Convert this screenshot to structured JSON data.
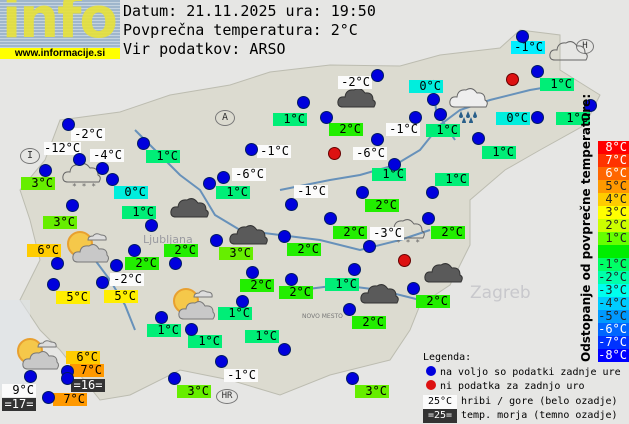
{
  "header": {
    "logo_text": "info",
    "logo_url": "www.informacije.si",
    "date_line": "Datum: 21.11.2025 ura: 19:50",
    "avg_line": "Povprečna temperatura: 2°C",
    "source_line": "Vir podatkov: ARSO"
  },
  "map_labels": [
    "A",
    "I",
    "H",
    "HR",
    "Zagreb",
    "Ljubljana",
    "NOVO MESTO"
  ],
  "stations": [
    {
      "temp": "-1°C",
      "style": "c3"
    },
    {
      "temp": "1°C",
      "style": "g1"
    },
    {
      "temp": "0°C",
      "style": "c2"
    },
    {
      "temp": "-2°C",
      "style": "w"
    },
    {
      "temp": "2°C",
      "style": "g0"
    },
    {
      "temp": "1°C",
      "style": "g1"
    },
    {
      "temp": "-1°C",
      "style": "w"
    },
    {
      "temp": "1°C",
      "style": "g1"
    },
    {
      "temp": "0°C",
      "style": "c2"
    },
    {
      "temp": "1°C",
      "style": "g1"
    },
    {
      "temp": "1°C",
      "style": "g1"
    },
    {
      "temp": "-6°C",
      "style": "w"
    },
    {
      "temp": "1°C",
      "style": "g1"
    },
    {
      "temp": "1°C",
      "style": "g1"
    },
    {
      "temp": "-1°C",
      "style": "w"
    },
    {
      "temp": "2°C",
      "style": "g0"
    },
    {
      "temp": "-2°C",
      "style": "w"
    },
    {
      "temp": "-12°C",
      "style": "w"
    },
    {
      "temp": "-4°C",
      "style": "w"
    },
    {
      "temp": "1°C",
      "style": "g1"
    },
    {
      "temp": "3°C",
      "style": "lm"
    },
    {
      "temp": "0°C",
      "style": "c2"
    },
    {
      "temp": "1°C",
      "style": "g1"
    },
    {
      "temp": "3°C",
      "style": "lm"
    },
    {
      "temp": "-1°C",
      "style": "w"
    },
    {
      "temp": "-6°C",
      "style": "w"
    },
    {
      "temp": "1°C",
      "style": "g1"
    },
    {
      "temp": "6°C",
      "style": "o4"
    },
    {
      "temp": "2°C",
      "style": "g0"
    },
    {
      "temp": "2°C",
      "style": "g0"
    },
    {
      "temp": "3°C",
      "style": "lm"
    },
    {
      "temp": "2°C",
      "style": "g0"
    },
    {
      "temp": "-2°C",
      "style": "w"
    },
    {
      "temp": "5°C",
      "style": "y"
    },
    {
      "temp": "5°C",
      "style": "y"
    },
    {
      "temp": "2°C",
      "style": "g0"
    },
    {
      "temp": "2°C",
      "style": "g0"
    },
    {
      "temp": "1°C",
      "style": "g1"
    },
    {
      "temp": "1°C",
      "style": "g1"
    },
    {
      "temp": "1°C",
      "style": "g1"
    },
    {
      "temp": "1°C",
      "style": "g1"
    },
    {
      "temp": "6°C",
      "style": "o4"
    },
    {
      "temp": "7°C",
      "style": "o5"
    },
    {
      "temp": "=16=",
      "style": "d"
    },
    {
      "temp": "9°C",
      "style": "w"
    },
    {
      "temp": "=17=",
      "style": "d"
    },
    {
      "temp": "7°C",
      "style": "o5"
    },
    {
      "temp": "3°C",
      "style": "lm"
    },
    {
      "temp": "-1°C",
      "style": "w"
    },
    {
      "temp": "2°C",
      "style": "g0"
    },
    {
      "temp": "-3°C",
      "style": "w"
    },
    {
      "temp": "2°C",
      "style": "g0"
    },
    {
      "temp": "1°C",
      "style": "g1"
    },
    {
      "temp": "2°C",
      "style": "g0"
    },
    {
      "temp": "2°C",
      "style": "g0"
    },
    {
      "temp": "3°C",
      "style": "lm"
    }
  ],
  "station_dots": [
    "ok",
    "ok",
    "missing",
    "ok",
    "ok",
    "ok",
    "ok",
    "ok",
    "ok",
    "ok",
    "ok",
    "ok",
    "ok",
    "missing",
    "ok",
    "ok",
    "ok",
    "ok",
    "ok",
    "ok",
    "missing",
    "ok",
    "ok",
    "ok",
    "ok",
    "ok",
    "ok",
    "ok",
    "ok",
    "ok",
    "ok",
    "ok",
    "ok",
    "ok",
    "ok",
    "ok",
    "ok",
    "ok",
    "ok",
    "ok",
    "ok",
    "ok",
    "ok",
    "ok",
    "ok",
    "ok",
    "ok",
    "ok",
    "ok",
    "ok",
    "ok",
    "ok",
    "ok",
    "ok",
    "ok",
    "ok",
    "ok"
  ],
  "weather_icons": [
    "cloud-snow",
    "cloud-dark",
    "cloud-dark",
    "cloud-dark",
    "cloud-rain",
    "cloud-outline",
    "cloud-snow",
    "cloud-dark",
    "cloud-dark",
    "sun-cloud",
    "sun-cloud",
    "sun-cloud"
  ],
  "scale": {
    "title": "Odstopanje od povprečne temperature:",
    "rows": [
      {
        "label": "8°C",
        "color": "#ff0000"
      },
      {
        "label": "7°C",
        "color": "#ff3300"
      },
      {
        "label": "6°C",
        "color": "#ff6600"
      },
      {
        "label": "5°C",
        "color": "#ff9900"
      },
      {
        "label": "4°C",
        "color": "#ffcc00"
      },
      {
        "label": "3°C",
        "color": "#ffff00"
      },
      {
        "label": "2°C",
        "color": "#ccff00"
      },
      {
        "label": "1°C",
        "color": "#66ff00"
      },
      {
        "label": "",
        "color": "#00ee00"
      },
      {
        "label": "-1°C",
        "color": "#00ff66"
      },
      {
        "label": "-2°C",
        "color": "#00ffaa"
      },
      {
        "label": "-3°C",
        "color": "#00ffee"
      },
      {
        "label": "-4°C",
        "color": "#00ccff"
      },
      {
        "label": "-5°C",
        "color": "#0099ff"
      },
      {
        "label": "-6°C",
        "color": "#0066ff"
      },
      {
        "label": "-7°C",
        "color": "#0033ff"
      },
      {
        "label": "-8°C",
        "color": "#0000ff"
      }
    ]
  },
  "legend": {
    "title": "Legenda:",
    "available": "na voljo so podatki zadnje ure",
    "missing": "ni podatka za zadnjo uro",
    "hill_sample": "25°C",
    "hill_text": "hribi / gore (belo ozadje)",
    "sea_sample": "=25=",
    "sea_text": "temp. morja (temno ozadje)",
    "available_color": "#0000dd",
    "missing_color": "#dd1111"
  }
}
